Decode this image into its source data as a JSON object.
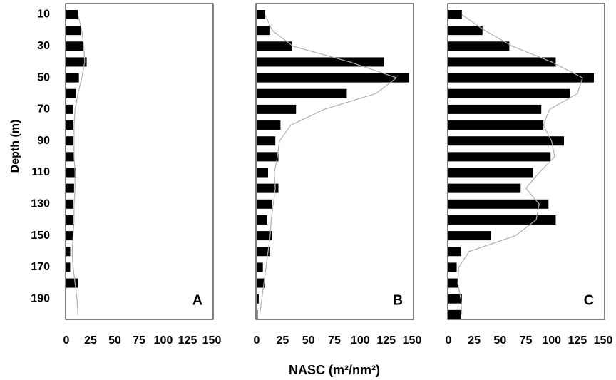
{
  "chart_data": [
    {
      "type": "bar",
      "orientation": "horizontal",
      "ylabel": "Depth (m)",
      "panel_label": "A",
      "categories": [
        "10",
        null,
        "30",
        null,
        "50",
        null,
        "70",
        null,
        "90",
        null,
        "110",
        null,
        "130",
        null,
        "150",
        null,
        "170",
        null,
        "190",
        null
      ],
      "xlim": [
        0,
        150
      ],
      "xticks": [
        0,
        25,
        50,
        75,
        100,
        125,
        150
      ],
      "series": [
        {
          "color": "#000000",
          "values": [
            12,
            15,
            17,
            21,
            13,
            10,
            7,
            7,
            7,
            8,
            10,
            8,
            7,
            7,
            7,
            4,
            4,
            12,
            0,
            0
          ]
        },
        {
          "color": "#b0b0b0",
          "values": [
            12,
            16,
            18,
            19,
            16,
            12,
            9,
            8,
            8,
            8,
            9,
            9,
            8,
            8,
            7,
            6,
            7,
            9,
            11,
            12
          ]
        }
      ]
    },
    {
      "type": "bar",
      "orientation": "horizontal",
      "xlabel": "NASC (m²/nm²)",
      "panel_label": "B",
      "xlim": [
        0,
        150
      ],
      "xticks": [
        0,
        25,
        50,
        75,
        100,
        125,
        150
      ],
      "series": [
        {
          "color": "#000000",
          "values": [
            8,
            13,
            34,
            123,
            147,
            87,
            38,
            23,
            18,
            21,
            11,
            21,
            15,
            10,
            15,
            13,
            6,
            8,
            2,
            1
          ]
        },
        {
          "color": "#b0b0b0",
          "values": [
            8,
            15,
            35,
            90,
            135,
            115,
            65,
            33,
            22,
            20,
            17,
            18,
            16,
            14,
            13,
            11,
            9,
            7,
            5,
            3
          ]
        }
      ]
    },
    {
      "type": "bar",
      "orientation": "horizontal",
      "panel_label": "C",
      "xlim": [
        0,
        150
      ],
      "xticks": [
        0,
        25,
        50,
        75,
        100,
        125,
        150
      ],
      "series": [
        {
          "color": "#000000",
          "values": [
            13,
            33,
            59,
            104,
            141,
            118,
            90,
            92,
            112,
            99,
            82,
            70,
            97,
            104,
            41,
            12,
            8,
            9,
            13,
            12
          ]
        },
        {
          "color": "#b0b0b0",
          "values": [
            13,
            35,
            62,
            100,
            130,
            125,
            98,
            92,
            100,
            103,
            88,
            75,
            88,
            85,
            65,
            20,
            10,
            9,
            12,
            13
          ]
        }
      ]
    }
  ]
}
